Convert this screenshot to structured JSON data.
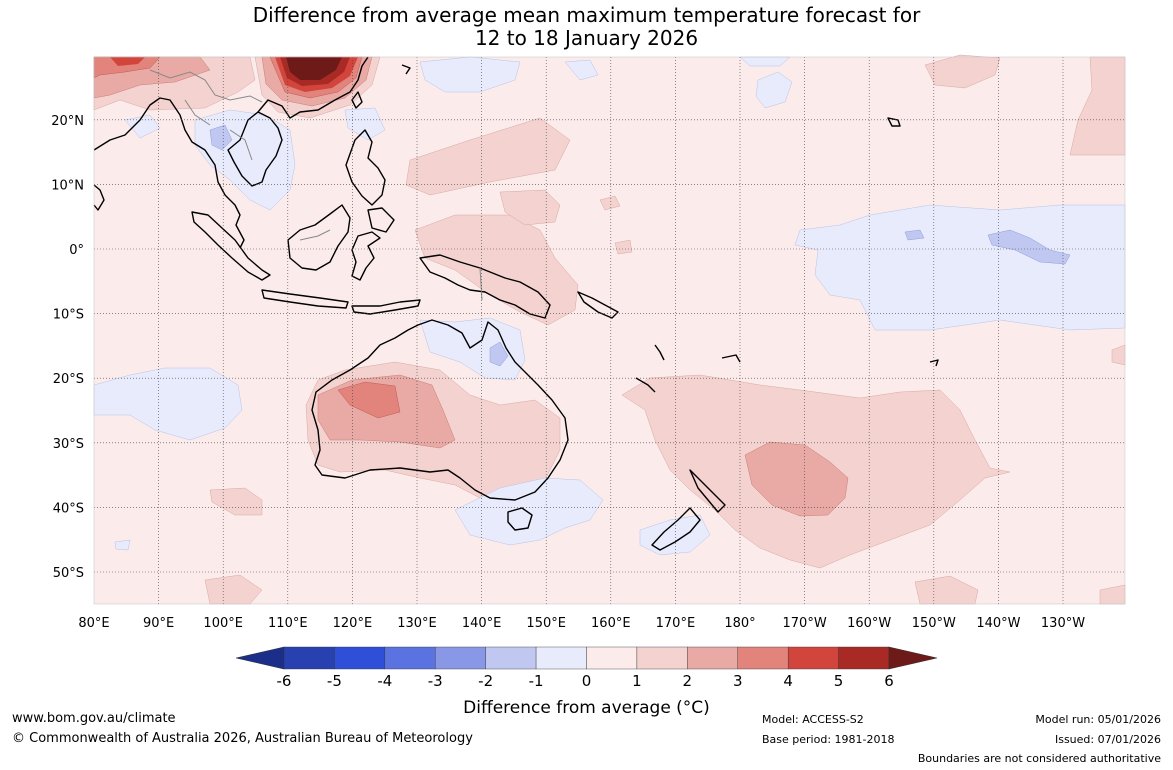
{
  "title": {
    "line1": "Difference from average mean maximum temperature forecast for",
    "line2": "12 to 18 January 2026"
  },
  "map": {
    "lon_labels": [
      "80°E",
      "90°E",
      "100°E",
      "110°E",
      "120°E",
      "130°E",
      "140°E",
      "150°E",
      "160°E",
      "170°E",
      "180°",
      "170°W",
      "160°W",
      "150°W",
      "140°W",
      "130°W"
    ],
    "lat_labels": [
      "20°N",
      "10°N",
      "0°",
      "10°S",
      "20°S",
      "30°S",
      "40°S",
      "50°S"
    ]
  },
  "colorbar": {
    "ticks": [
      "-6",
      "-5",
      "-4",
      "-3",
      "-2",
      "-1",
      "0",
      "1",
      "2",
      "3",
      "4",
      "5",
      "6"
    ],
    "colors": [
      "#1b2f8a",
      "#2741b1",
      "#2f4fd9",
      "#5b73e0",
      "#8898e6",
      "#c0c8f2",
      "#e8ebfb",
      "#fbeceb",
      "#f3d2cf",
      "#e9aaa5",
      "#e2837c",
      "#d2453d",
      "#a92a25",
      "#6e1a18"
    ],
    "title": "Difference from average (°C)"
  },
  "footer": {
    "website": "www.bom.gov.au/climate",
    "copyright": "© Commonwealth of Australia 2026, Australian Bureau of Meteorology",
    "model": "Model: ACCESS-S2",
    "base_period": "Base period: 1981-2018",
    "model_run": "Model run: 05/01/2026",
    "issued": "Issued: 07/01/2026",
    "disclaimer": "Boundaries are not considered authoritative"
  }
}
